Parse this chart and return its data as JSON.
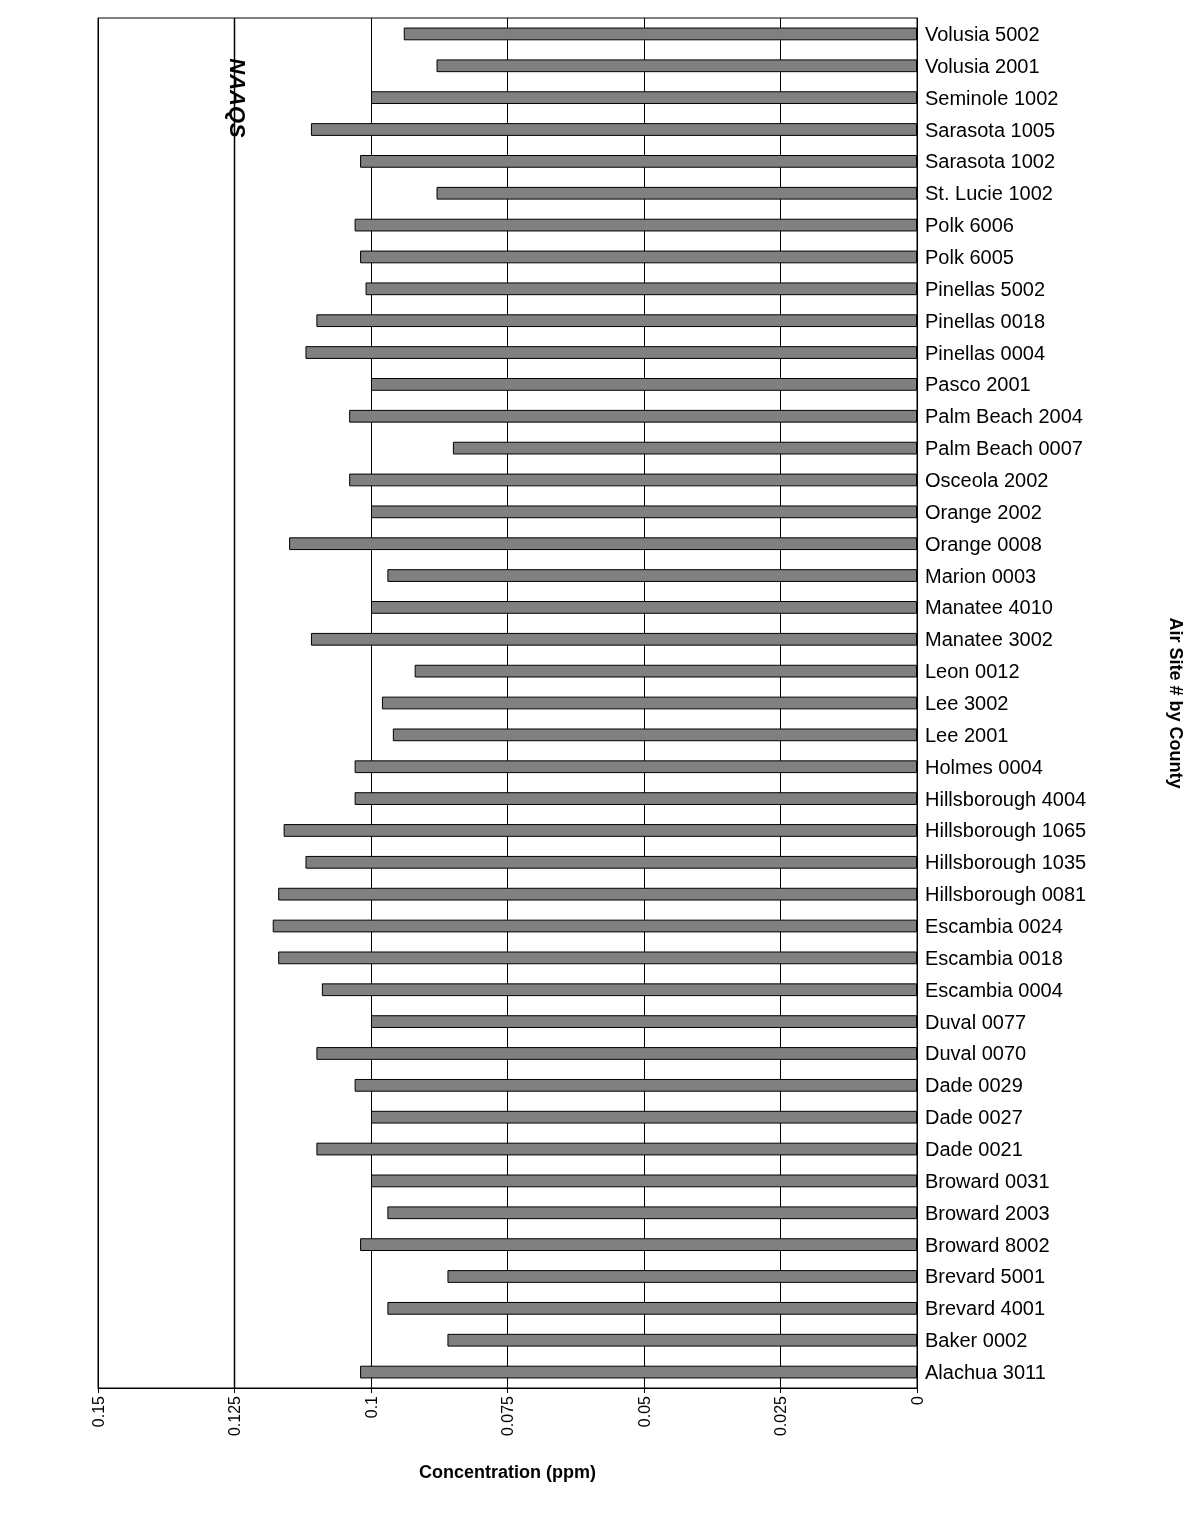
{
  "chart_data": {
    "type": "bar",
    "orientation": "horizontal",
    "xlabel": "Concentration (ppm)",
    "ylabel": "Air Site # by County",
    "categories": [
      "Volusia 5002",
      "Volusia 2001",
      "Seminole 1002",
      "Sarasota 1005",
      "Sarasota 1002",
      "St. Lucie 1002",
      "Polk 6006",
      "Polk 6005",
      "Pinellas 5002",
      "Pinellas 0018",
      "Pinellas 0004",
      "Pasco 2001",
      "Palm Beach 2004",
      "Palm Beach 0007",
      "Osceola 2002",
      "Orange 2002",
      "Orange 0008",
      "Marion 0003",
      "Manatee 4010",
      "Manatee 3002",
      "Leon 0012",
      "Lee 3002",
      "Lee 2001",
      "Holmes 0004",
      "Hillsborough 4004",
      "Hillsborough 1065",
      "Hillsborough 1035",
      "Hillsborough 0081",
      "Escambia 0024",
      "Escambia 0018",
      "Escambia 0004",
      "Duval 0077",
      "Duval 0070",
      "Dade 0029",
      "Dade 0027",
      "Dade 0021",
      "Broward 0031",
      "Broward 2003",
      "Broward 8002",
      "Brevard 5001",
      "Brevard 4001",
      "Baker 0002",
      "Alachua 3011"
    ],
    "values": [
      0.094,
      0.088,
      0.1,
      0.111,
      0.102,
      0.088,
      0.103,
      0.102,
      0.101,
      0.11,
      0.112,
      0.1,
      0.104,
      0.085,
      0.104,
      0.1,
      0.115,
      0.097,
      0.1,
      0.111,
      0.092,
      0.098,
      0.096,
      0.103,
      0.103,
      0.116,
      0.112,
      0.117,
      0.118,
      0.117,
      0.109,
      0.1,
      0.11,
      0.103,
      0.1,
      0.11,
      0.1,
      0.097,
      0.102,
      0.086,
      0.097,
      0.086,
      0.102
    ],
    "color": "#808080",
    "xlim": [
      0.15,
      0
    ],
    "xticks": [
      0.15,
      0.125,
      0.1,
      0.075,
      0.05,
      0.025,
      0
    ],
    "grid": "x",
    "ref_lines": [
      {
        "axis": "x",
        "value": 0.125,
        "label": "NAAQS",
        "color": "#000000",
        "line_style": "solid"
      }
    ]
  }
}
